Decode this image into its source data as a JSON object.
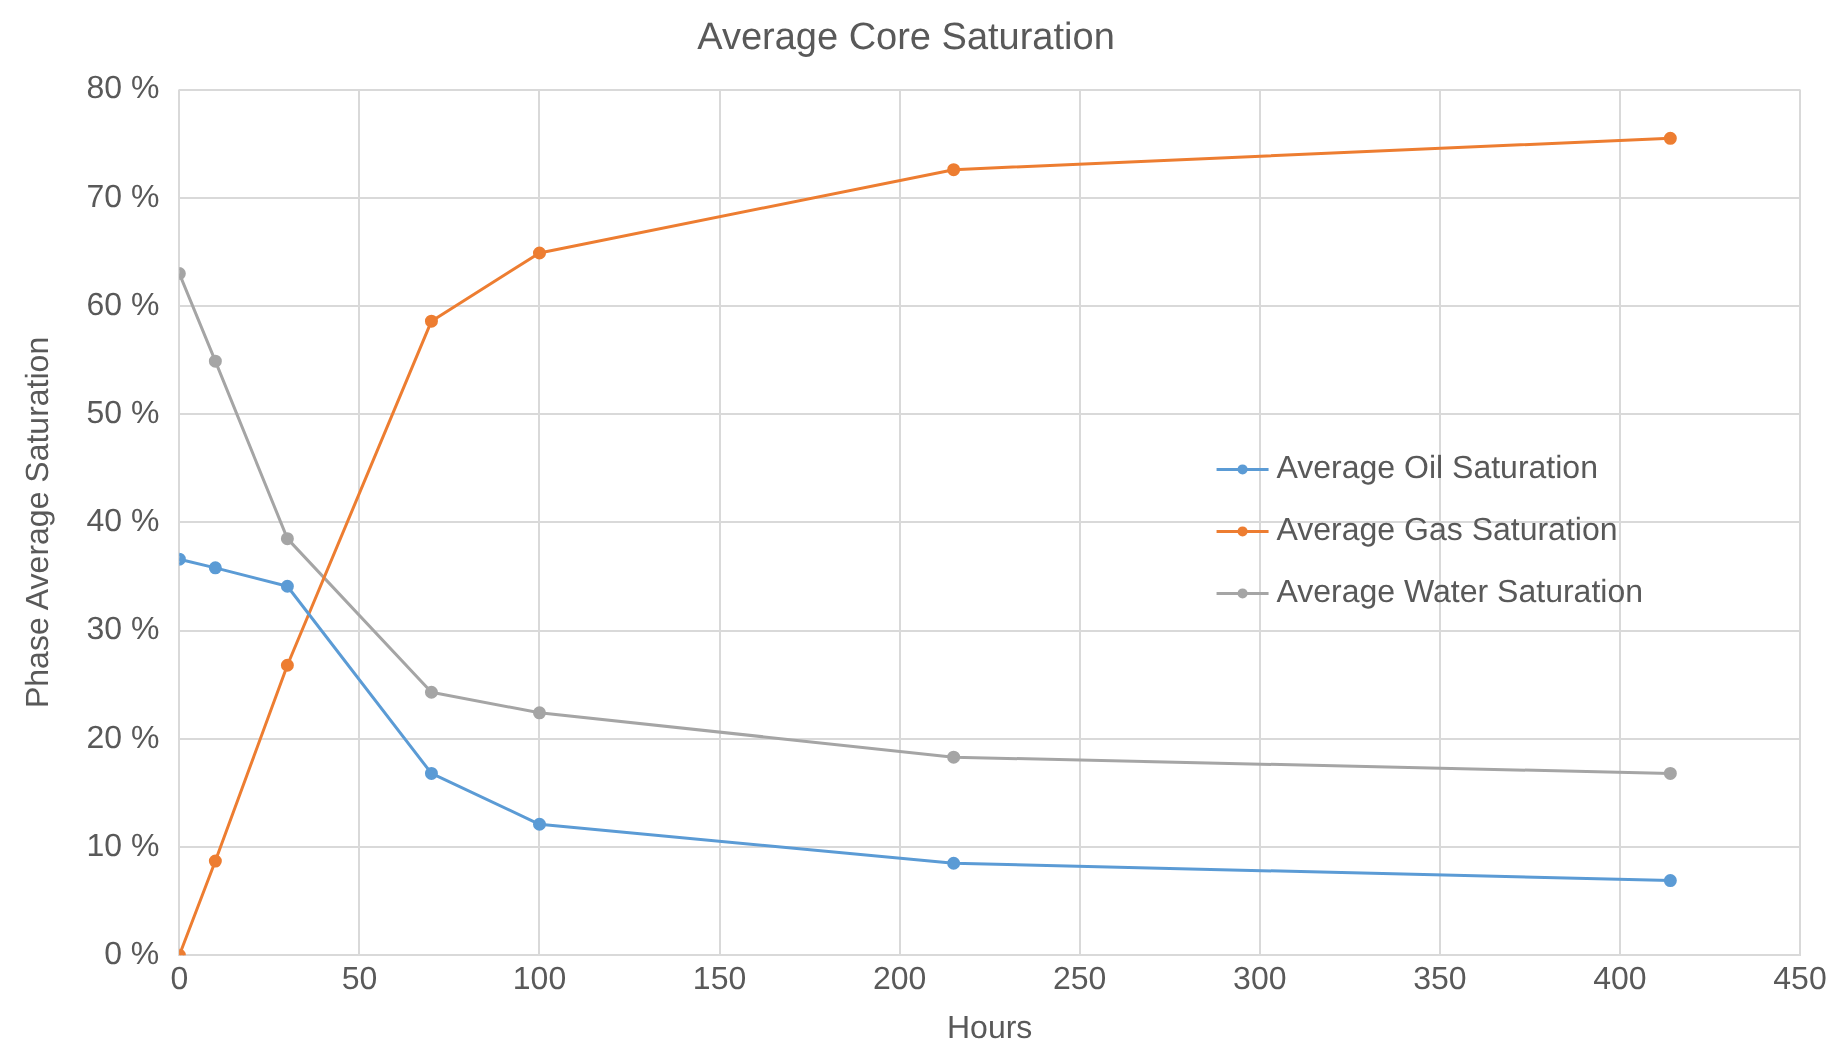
{
  "chart_data": {
    "type": "line",
    "title": "Average Core Saturation",
    "xlabel": "Hours",
    "ylabel": "Phase Average Saturation",
    "x": [
      0,
      10,
      30,
      70,
      100,
      215,
      414
    ],
    "series": [
      {
        "name": "Average Oil Saturation",
        "color": "#5b9bd5",
        "values": [
          36.6,
          35.8,
          34.1,
          16.8,
          12.1,
          8.5,
          6.9
        ]
      },
      {
        "name": "Average Gas Saturation",
        "color": "#ed7d31",
        "values": [
          0,
          8.7,
          26.8,
          58.6,
          64.9,
          72.6,
          75.5
        ]
      },
      {
        "name": "Average Water Saturation",
        "color": "#a5a5a5",
        "values": [
          63.0,
          54.9,
          38.5,
          24.3,
          22.4,
          18.3,
          16.8
        ]
      }
    ],
    "xlim": [
      0,
      450
    ],
    "xticks": [
      0,
      50,
      100,
      150,
      200,
      250,
      300,
      350,
      400,
      450
    ],
    "ylim": [
      0,
      80
    ],
    "yticks": [
      {
        "value": 0,
        "label": "0 %"
      },
      {
        "value": 10,
        "label": "10 %"
      },
      {
        "value": 20,
        "label": "20 %"
      },
      {
        "value": 30,
        "label": "30 %"
      },
      {
        "value": 40,
        "label": "40 %"
      },
      {
        "value": 50,
        "label": "50 %"
      },
      {
        "value": 60,
        "label": "60 %"
      },
      {
        "value": 70,
        "label": "70 %"
      },
      {
        "value": 80,
        "label": "80 %"
      }
    ],
    "grid": true,
    "legend": "right",
    "marker": "circle",
    "line_style": "solid"
  }
}
